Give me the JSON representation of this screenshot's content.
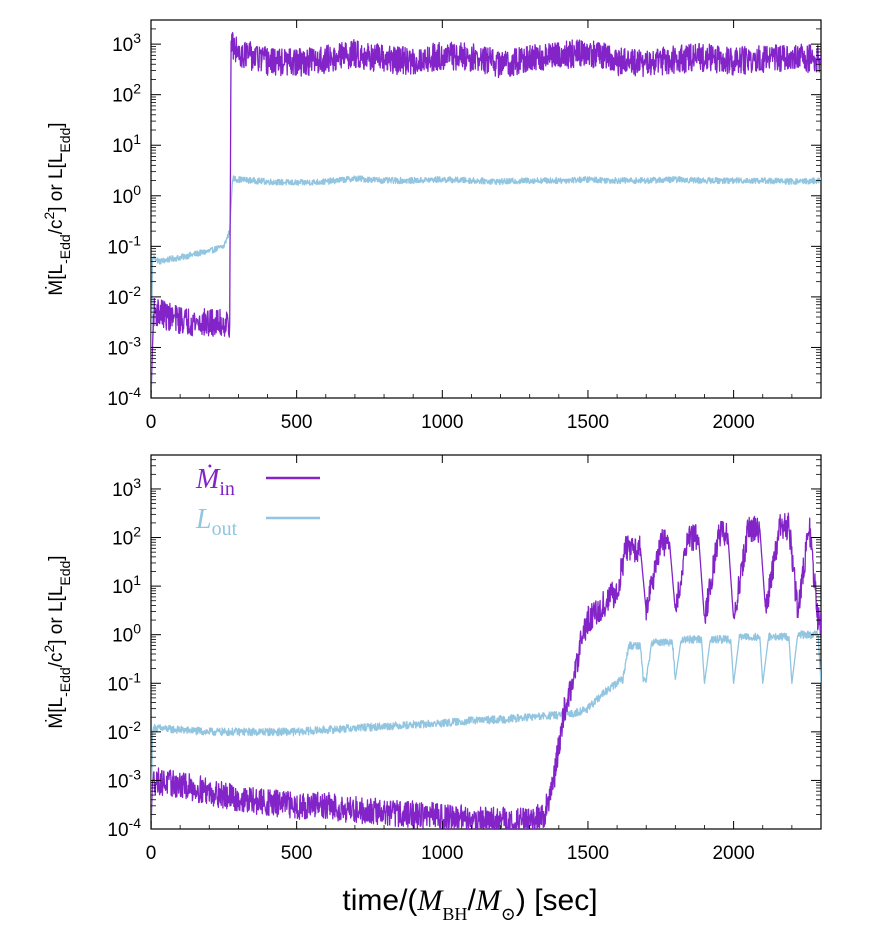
{
  "colors": {
    "mdot_in": "#8224c8",
    "l_out": "#92c5e0",
    "axis": "#000000"
  },
  "xlabel": {
    "prefix": "time/(",
    "num": "M",
    "num_sub": "BH",
    "slash": "/",
    "den": "M",
    "den_sub": "⊙",
    "suffix": ") [sec]"
  },
  "ylabel": {
    "p1": "Ṁ[L",
    "s1": "-Edd",
    "p2": "/c",
    "sup": "2",
    "p3": "] or L[L",
    "s2": "Edd",
    "p4": "]"
  },
  "legend": {
    "mdot": {
      "base": "Ṁ",
      "sub": "in"
    },
    "lout": {
      "base": "L",
      "sub": "out"
    }
  },
  "chart_data": [
    {
      "type": "line",
      "panel": "top",
      "yscale": "log",
      "xlim": [
        0,
        2300
      ],
      "ylim": [
        0.0001,
        3000
      ],
      "xticks": [
        0,
        500,
        1000,
        1500,
        2000
      ],
      "xticklabels": [
        "0",
        "500",
        "1000",
        "1500",
        "2000"
      ],
      "yticks": [
        0.0001,
        0.001,
        0.01,
        0.1,
        1,
        10,
        100,
        1000
      ],
      "yticklabels": [
        [
          "10",
          "-4"
        ],
        [
          "10",
          "-3"
        ],
        [
          "10",
          "-2"
        ],
        [
          "10",
          "-1"
        ],
        [
          "10",
          "0"
        ],
        [
          "10",
          "1"
        ],
        [
          "10",
          "2"
        ],
        [
          "10",
          "3"
        ]
      ],
      "series": [
        {
          "name": "Ṁin",
          "color": "#8224c8",
          "x": [
            0,
            5,
            10,
            30,
            60,
            100,
            150,
            200,
            250,
            270,
            275,
            280,
            300,
            400,
            500,
            600,
            700,
            800,
            900,
            1000,
            1100,
            1200,
            1300,
            1400,
            1500,
            1600,
            1700,
            1800,
            1900,
            2000,
            2100,
            2200,
            2300
          ],
          "y": [
            0.0001,
            0.001,
            0.005,
            0.005,
            0.004,
            0.0035,
            0.0032,
            0.003,
            0.003,
            0.003,
            1000,
            900,
            700,
            450,
            420,
            500,
            650,
            500,
            450,
            600,
            550,
            400,
            500,
            600,
            700,
            450,
            400,
            500,
            550,
            450,
            500,
            550,
            500
          ],
          "noise": 0.28
        },
        {
          "name": "Lout",
          "color": "#92c5e0",
          "x": [
            0,
            5,
            10,
            30,
            60,
            100,
            150,
            200,
            250,
            270,
            280,
            300,
            400,
            500,
            600,
            700,
            800,
            900,
            1000,
            1100,
            1200,
            1300,
            1400,
            1500,
            1600,
            1700,
            1800,
            1900,
            2000,
            2100,
            2200,
            2300
          ],
          "y": [
            0.0001,
            0.06,
            0.06,
            0.05,
            0.055,
            0.06,
            0.07,
            0.08,
            0.1,
            0.2,
            2.2,
            2.1,
            1.9,
            1.8,
            1.9,
            2.2,
            2.0,
            2.0,
            2.1,
            2.0,
            1.9,
            2.0,
            2.0,
            2.1,
            2.0,
            2.0,
            2.1,
            2.0,
            2.0,
            2.0,
            1.9,
            2.0
          ],
          "noise": 0.06
        }
      ]
    },
    {
      "type": "line",
      "panel": "bottom",
      "yscale": "log",
      "xlim": [
        0,
        2300
      ],
      "ylim": [
        0.0001,
        5000
      ],
      "xticks": [
        0,
        500,
        1000,
        1500,
        2000
      ],
      "xticklabels": [
        "0",
        "500",
        "1000",
        "1500",
        "2000"
      ],
      "yticks": [
        0.0001,
        0.001,
        0.01,
        0.1,
        1,
        10,
        100,
        1000
      ],
      "yticklabels": [
        [
          "10",
          "-4"
        ],
        [
          "10",
          "-3"
        ],
        [
          "10",
          "-2"
        ],
        [
          "10",
          "-1"
        ],
        [
          "10",
          "0"
        ],
        [
          "10",
          "1"
        ],
        [
          "10",
          "2"
        ],
        [
          "10",
          "3"
        ]
      ],
      "series": [
        {
          "name": "Ṁin",
          "color": "#8224c8",
          "x": [
            0,
            5,
            10,
            50,
            100,
            200,
            300,
            400,
            500,
            600,
            700,
            800,
            900,
            1000,
            1100,
            1200,
            1300,
            1350,
            1380,
            1400,
            1420,
            1450,
            1470,
            1500,
            1550,
            1600,
            1630,
            1680,
            1700,
            1750,
            1780,
            1800,
            1840,
            1880,
            1900,
            1950,
            1980,
            2000,
            2050,
            2090,
            2110,
            2160,
            2190,
            2220,
            2260,
            2290,
            2300
          ],
          "y": [
            0.0001,
            0.001,
            0.001,
            0.0009,
            0.0008,
            0.0006,
            0.0004,
            0.00035,
            0.0003,
            0.0003,
            0.00025,
            0.00022,
            0.0002,
            0.00018,
            0.00016,
            0.00015,
            0.00014,
            0.0002,
            0.0008,
            0.005,
            0.03,
            0.1,
            0.5,
            2,
            4,
            8,
            60,
            60,
            3,
            80,
            80,
            3,
            100,
            100,
            2,
            120,
            120,
            2,
            150,
            150,
            3,
            170,
            170,
            3,
            160,
            2,
            2
          ],
          "noise": 0.28
        },
        {
          "name": "Lout",
          "color": "#92c5e0",
          "x": [
            0,
            5,
            10,
            100,
            200,
            300,
            400,
            500,
            600,
            700,
            800,
            900,
            1000,
            1100,
            1200,
            1300,
            1400,
            1450,
            1500,
            1550,
            1600,
            1610,
            1620,
            1640,
            1660,
            1680,
            1690,
            1700,
            1720,
            1760,
            1790,
            1800,
            1820,
            1860,
            1890,
            1900,
            1920,
            1960,
            1990,
            2000,
            2020,
            2060,
            2090,
            2100,
            2120,
            2160,
            2190,
            2200,
            2220,
            2260,
            2290,
            2300
          ],
          "y": [
            0.0001,
            0.01,
            0.012,
            0.011,
            0.01,
            0.01,
            0.01,
            0.01,
            0.011,
            0.012,
            0.013,
            0.014,
            0.015,
            0.017,
            0.018,
            0.02,
            0.022,
            0.024,
            0.03,
            0.06,
            0.1,
            0.12,
            0.12,
            0.6,
            0.6,
            0.6,
            0.12,
            0.12,
            0.7,
            0.7,
            0.7,
            0.12,
            0.8,
            0.8,
            0.8,
            0.1,
            0.8,
            0.8,
            0.8,
            0.1,
            0.9,
            0.9,
            0.9,
            0.1,
            0.9,
            0.9,
            0.9,
            0.1,
            1.0,
            1.0,
            1.0,
            0.1
          ],
          "noise": 0.08
        }
      ]
    }
  ]
}
